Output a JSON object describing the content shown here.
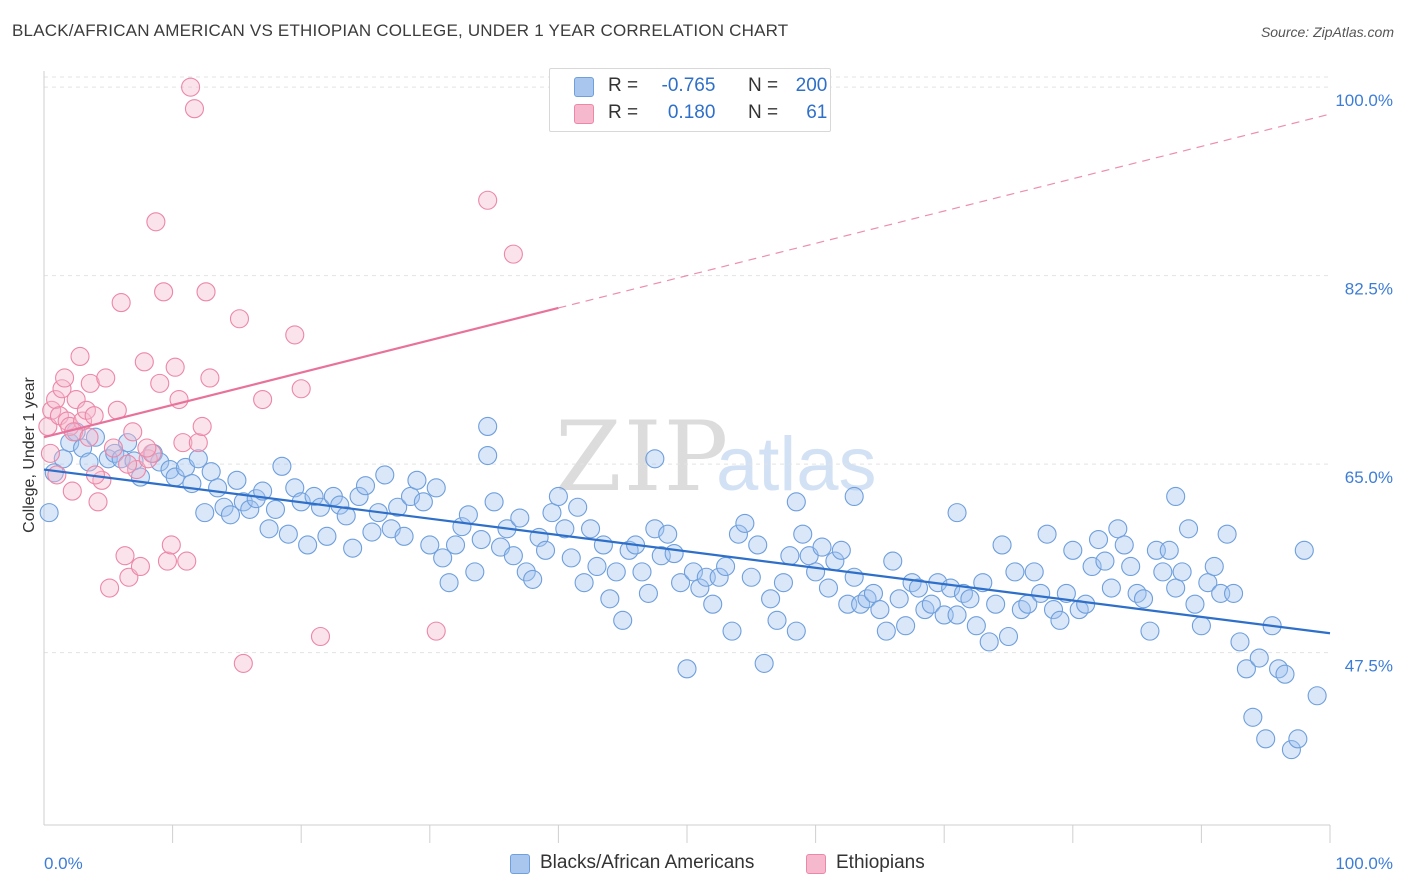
{
  "title": "BLACK/AFRICAN AMERICAN VS ETHIOPIAN COLLEGE, UNDER 1 YEAR CORRELATION CHART",
  "source": "Source: ZipAtlas.com",
  "watermark": {
    "zip": "ZIP",
    "atlas": "atlas"
  },
  "legend": {
    "r_label": "R =",
    "n_label": "N =",
    "rows": [
      {
        "r": "-0.765",
        "n": "200",
        "color": "#a9c6ee",
        "border": "#6f9fdc"
      },
      {
        "r": " 0.180",
        "n": "61",
        "color": "#f6b8cc",
        "border": "#ec87a7"
      }
    ]
  },
  "bottom_legend": [
    {
      "label": "Blacks/African Americans",
      "color": "#a9c6ee",
      "border": "#6f9fdc"
    },
    {
      "label": "Ethiopians",
      "color": "#f6b8cc",
      "border": "#ec87a7"
    }
  ],
  "colors": {
    "blue": "#2e6fc9",
    "blue_fill": "rgba(160,196,240,0.40)",
    "blue_stroke": "#6f9fdc",
    "pink": "#e8729b",
    "pink_fill": "rgba(246,184,204,0.40)",
    "pink_stroke": "#ec87a7",
    "grid": "#e3e3e3",
    "tick_text": "#3d7dd6"
  },
  "chart_data": {
    "type": "scatter",
    "title": "BLACK/AFRICAN AMERICAN VS ETHIOPIAN COLLEGE, UNDER 1 YEAR CORRELATION CHART",
    "xlabel": "",
    "ylabel": "College, Under 1 year",
    "xlim": [
      0,
      100
    ],
    "ylim": [
      31.5,
      101.5
    ],
    "x_ticks": [
      "0.0%",
      "100.0%"
    ],
    "y_ticks": [
      {
        "value": 47.5,
        "label": "47.5%"
      },
      {
        "value": 65.0,
        "label": "65.0%"
      },
      {
        "value": 82.5,
        "label": "82.5%"
      },
      {
        "value": 100.0,
        "label": "100.0%"
      }
    ],
    "grid": true,
    "series": [
      {
        "name": "Blacks/African Americans",
        "r": -0.765,
        "n": 200,
        "trend": {
          "x": [
            0,
            100
          ],
          "y": [
            64.5,
            49.3
          ],
          "style": "solid"
        },
        "points": [
          [
            0.4,
            60.5
          ],
          [
            0.8,
            64.2
          ],
          [
            1.5,
            65.5
          ],
          [
            2.0,
            67.0
          ],
          [
            2.5,
            68.0
          ],
          [
            3.0,
            66.5
          ],
          [
            3.5,
            65.2
          ],
          [
            4.0,
            67.5
          ],
          [
            5.0,
            65.5
          ],
          [
            5.5,
            66.0
          ],
          [
            6.0,
            65.5
          ],
          [
            6.5,
            67.0
          ],
          [
            7.0,
            65.3
          ],
          [
            7.5,
            63.8
          ],
          [
            8.5,
            66.0
          ],
          [
            9.0,
            65.2
          ],
          [
            9.8,
            64.5
          ],
          [
            10.2,
            63.8
          ],
          [
            11.0,
            64.7
          ],
          [
            11.5,
            63.2
          ],
          [
            12.0,
            65.5
          ],
          [
            12.5,
            60.5
          ],
          [
            13.0,
            64.3
          ],
          [
            13.5,
            62.8
          ],
          [
            14.0,
            61.0
          ],
          [
            14.5,
            60.3
          ],
          [
            15.0,
            63.5
          ],
          [
            15.5,
            61.5
          ],
          [
            16.0,
            60.8
          ],
          [
            16.5,
            61.8
          ],
          [
            17.0,
            62.5
          ],
          [
            17.5,
            59.0
          ],
          [
            18.0,
            60.8
          ],
          [
            18.5,
            64.8
          ],
          [
            19.0,
            58.5
          ],
          [
            19.5,
            62.8
          ],
          [
            20.0,
            61.5
          ],
          [
            20.5,
            57.5
          ],
          [
            21.0,
            62.0
          ],
          [
            21.5,
            61.0
          ],
          [
            22.0,
            58.3
          ],
          [
            22.5,
            62.0
          ],
          [
            23.0,
            61.2
          ],
          [
            23.5,
            60.2
          ],
          [
            24.0,
            57.2
          ],
          [
            24.5,
            62.0
          ],
          [
            25.0,
            63.0
          ],
          [
            25.5,
            58.7
          ],
          [
            26.0,
            60.5
          ],
          [
            26.5,
            64.0
          ],
          [
            27.0,
            59.0
          ],
          [
            27.5,
            61.0
          ],
          [
            28.0,
            58.3
          ],
          [
            28.5,
            62.0
          ],
          [
            29.0,
            63.5
          ],
          [
            29.5,
            61.5
          ],
          [
            30.0,
            57.5
          ],
          [
            30.5,
            62.8
          ],
          [
            31.0,
            56.3
          ],
          [
            31.5,
            54.0
          ],
          [
            32.0,
            57.5
          ],
          [
            32.5,
            59.2
          ],
          [
            33.0,
            60.3
          ],
          [
            33.5,
            55.0
          ],
          [
            34.0,
            58.0
          ],
          [
            34.5,
            65.8
          ],
          [
            35.0,
            61.5
          ],
          [
            35.5,
            57.3
          ],
          [
            36.0,
            59.0
          ],
          [
            36.5,
            56.5
          ],
          [
            37.0,
            60.0
          ],
          [
            37.5,
            55.0
          ],
          [
            38.0,
            54.3
          ],
          [
            38.5,
            58.2
          ],
          [
            39.0,
            57.0
          ],
          [
            39.5,
            60.5
          ],
          [
            40.0,
            62.0
          ],
          [
            40.5,
            59.0
          ],
          [
            41.0,
            56.3
          ],
          [
            41.5,
            61.0
          ],
          [
            42.0,
            54.0
          ],
          [
            42.5,
            59.0
          ],
          [
            43.0,
            55.5
          ],
          [
            43.5,
            57.5
          ],
          [
            44.0,
            52.5
          ],
          [
            44.5,
            55.0
          ],
          [
            45.0,
            50.5
          ],
          [
            45.5,
            57.0
          ],
          [
            46.0,
            57.5
          ],
          [
            46.5,
            55.0
          ],
          [
            47.0,
            53.0
          ],
          [
            47.5,
            59.0
          ],
          [
            48.0,
            56.5
          ],
          [
            48.5,
            58.5
          ],
          [
            49.0,
            56.7
          ],
          [
            49.5,
            54.0
          ],
          [
            50.0,
            46.0
          ],
          [
            50.5,
            55.0
          ],
          [
            51.0,
            53.5
          ],
          [
            51.5,
            54.5
          ],
          [
            52.0,
            52.0
          ],
          [
            52.5,
            54.5
          ],
          [
            53.0,
            55.5
          ],
          [
            53.5,
            49.5
          ],
          [
            54.0,
            58.5
          ],
          [
            54.5,
            59.5
          ],
          [
            55.0,
            54.5
          ],
          [
            55.5,
            57.5
          ],
          [
            56.0,
            46.5
          ],
          [
            56.5,
            52.5
          ],
          [
            57.0,
            50.5
          ],
          [
            57.5,
            54.0
          ],
          [
            58.0,
            56.5
          ],
          [
            58.5,
            49.5
          ],
          [
            59.0,
            58.5
          ],
          [
            59.5,
            56.5
          ],
          [
            60.0,
            55.0
          ],
          [
            60.5,
            57.3
          ],
          [
            61.0,
            53.5
          ],
          [
            61.5,
            56.0
          ],
          [
            62.0,
            57.0
          ],
          [
            62.5,
            52.0
          ],
          [
            63.0,
            54.5
          ],
          [
            63.5,
            52.0
          ],
          [
            64.0,
            52.5
          ],
          [
            64.5,
            53.0
          ],
          [
            65.0,
            51.5
          ],
          [
            65.5,
            49.5
          ],
          [
            66.0,
            56.0
          ],
          [
            66.5,
            52.5
          ],
          [
            67.0,
            50.0
          ],
          [
            67.5,
            54.0
          ],
          [
            68.0,
            53.5
          ],
          [
            68.5,
            51.5
          ],
          [
            69.0,
            52.0
          ],
          [
            69.5,
            54.0
          ],
          [
            70.0,
            51.0
          ],
          [
            70.5,
            53.5
          ],
          [
            71.0,
            51.0
          ],
          [
            71.5,
            53.0
          ],
          [
            72.0,
            52.5
          ],
          [
            72.5,
            50.0
          ],
          [
            73.0,
            54.0
          ],
          [
            73.5,
            48.5
          ],
          [
            74.0,
            52.0
          ],
          [
            74.5,
            57.5
          ],
          [
            75.0,
            49.0
          ],
          [
            75.5,
            55.0
          ],
          [
            76.0,
            51.5
          ],
          [
            76.5,
            52.0
          ],
          [
            77.0,
            55.0
          ],
          [
            77.5,
            53.0
          ],
          [
            78.0,
            58.5
          ],
          [
            78.5,
            51.5
          ],
          [
            79.0,
            50.5
          ],
          [
            79.5,
            53.0
          ],
          [
            80.0,
            57.0
          ],
          [
            80.5,
            51.5
          ],
          [
            81.0,
            52.0
          ],
          [
            81.5,
            55.5
          ],
          [
            82.0,
            58.0
          ],
          [
            82.5,
            56.0
          ],
          [
            83.0,
            53.5
          ],
          [
            83.5,
            59.0
          ],
          [
            84.0,
            57.5
          ],
          [
            84.5,
            55.5
          ],
          [
            85.0,
            53.0
          ],
          [
            85.5,
            52.5
          ],
          [
            86.0,
            49.5
          ],
          [
            86.5,
            57.0
          ],
          [
            87.0,
            55.0
          ],
          [
            87.5,
            57.0
          ],
          [
            88.0,
            53.5
          ],
          [
            88.5,
            55.0
          ],
          [
            89.0,
            59.0
          ],
          [
            89.5,
            52.0
          ],
          [
            90.0,
            50.0
          ],
          [
            90.5,
            54.0
          ],
          [
            91.0,
            55.5
          ],
          [
            91.5,
            53.0
          ],
          [
            92.0,
            58.5
          ],
          [
            92.5,
            53.0
          ],
          [
            93.0,
            48.5
          ],
          [
            93.5,
            46.0
          ],
          [
            94.0,
            41.5
          ],
          [
            94.5,
            47.0
          ],
          [
            95.0,
            39.5
          ],
          [
            95.5,
            50.0
          ],
          [
            96.0,
            46.0
          ],
          [
            96.5,
            45.5
          ],
          [
            97.0,
            38.5
          ],
          [
            97.5,
            39.5
          ],
          [
            98.0,
            57.0
          ],
          [
            99.0,
            43.5
          ],
          [
            34.5,
            68.5
          ],
          [
            47.5,
            65.5
          ],
          [
            58.5,
            61.5
          ],
          [
            63.0,
            62.0
          ],
          [
            71.0,
            60.5
          ],
          [
            88.0,
            62.0
          ]
        ]
      },
      {
        "name": "Ethiopians",
        "r": 0.18,
        "n": 61,
        "trend": {
          "x": [
            0,
            40
          ],
          "y": [
            67.5,
            79.5
          ],
          "style": "solid",
          "extended": {
            "x": [
              40,
              100
            ],
            "y": [
              79.5,
              97.5
            ],
            "style": "dashed"
          }
        },
        "points": [
          [
            0.3,
            68.5
          ],
          [
            0.6,
            70.0
          ],
          [
            0.9,
            71.0
          ],
          [
            1.2,
            69.5
          ],
          [
            1.4,
            72.0
          ],
          [
            1.6,
            73.0
          ],
          [
            1.8,
            69.0
          ],
          [
            2.0,
            68.5
          ],
          [
            2.2,
            62.5
          ],
          [
            2.5,
            71.0
          ],
          [
            2.8,
            75.0
          ],
          [
            3.0,
            69.0
          ],
          [
            3.3,
            70.0
          ],
          [
            3.6,
            72.5
          ],
          [
            3.9,
            69.5
          ],
          [
            4.2,
            61.5
          ],
          [
            4.5,
            63.5
          ],
          [
            4.8,
            73.0
          ],
          [
            5.1,
            53.5
          ],
          [
            5.4,
            66.5
          ],
          [
            5.7,
            70.0
          ],
          [
            6.0,
            80.0
          ],
          [
            6.3,
            56.5
          ],
          [
            6.6,
            54.5
          ],
          [
            6.9,
            68.0
          ],
          [
            7.2,
            64.5
          ],
          [
            7.5,
            55.5
          ],
          [
            7.8,
            74.5
          ],
          [
            8.1,
            65.5
          ],
          [
            8.4,
            66.0
          ],
          [
            8.7,
            87.5
          ],
          [
            9.0,
            72.5
          ],
          [
            9.3,
            81.0
          ],
          [
            9.6,
            56.0
          ],
          [
            9.9,
            57.5
          ],
          [
            10.2,
            74.0
          ],
          [
            10.5,
            71.0
          ],
          [
            10.8,
            67.0
          ],
          [
            11.1,
            56.0
          ],
          [
            11.4,
            100.0
          ],
          [
            11.7,
            98.0
          ],
          [
            12.0,
            67.0
          ],
          [
            12.3,
            68.5
          ],
          [
            12.6,
            81.0
          ],
          [
            12.9,
            73.0
          ],
          [
            15.5,
            46.5
          ],
          [
            15.2,
            78.5
          ],
          [
            17.0,
            71.0
          ],
          [
            19.5,
            77.0
          ],
          [
            20.0,
            72.0
          ],
          [
            21.5,
            49.0
          ],
          [
            30.5,
            49.5
          ],
          [
            34.5,
            89.5
          ],
          [
            36.5,
            84.5
          ],
          [
            1.0,
            64.0
          ],
          [
            2.3,
            68.0
          ],
          [
            3.5,
            67.5
          ],
          [
            6.5,
            65.0
          ],
          [
            8.0,
            66.5
          ],
          [
            4.0,
            64.0
          ],
          [
            0.5,
            66.0
          ]
        ]
      }
    ]
  }
}
